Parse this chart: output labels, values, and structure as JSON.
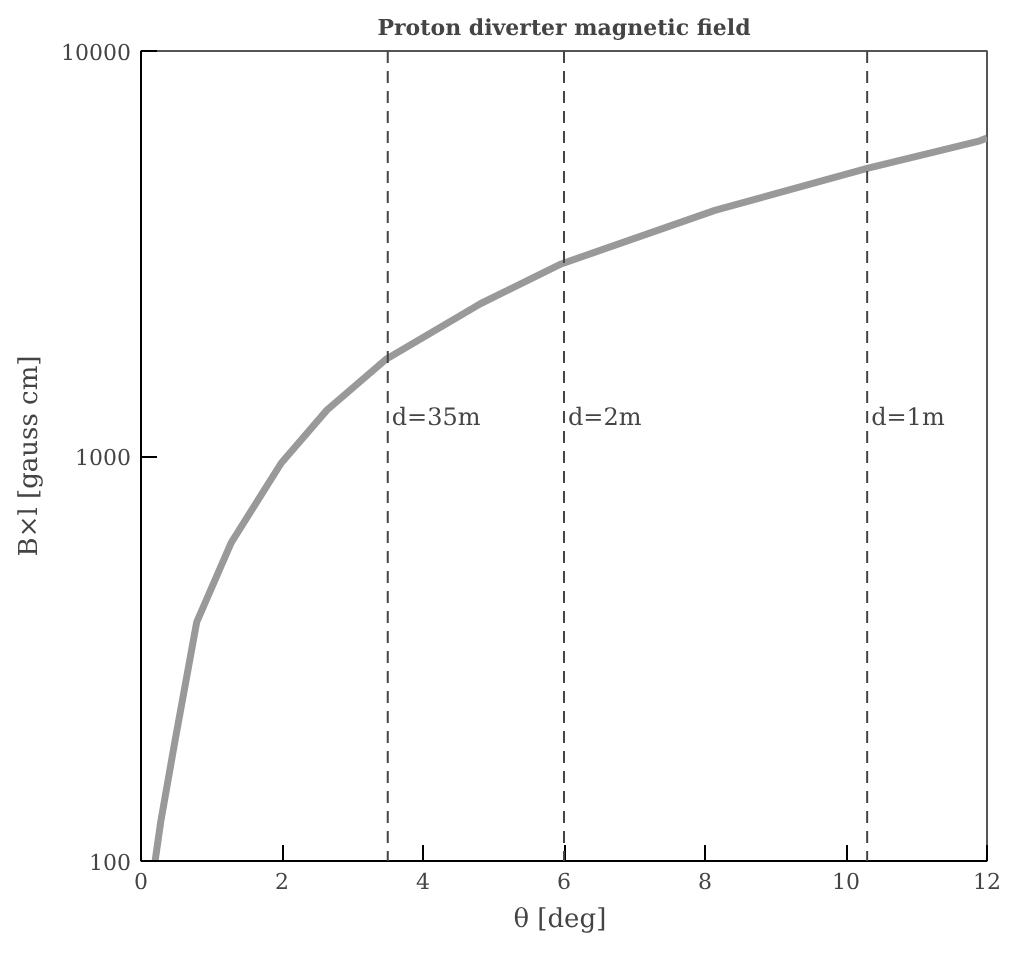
{
  "chart_data": {
    "type": "line",
    "title": "Proton diverter magnetic field",
    "xlabel": "θ  [deg]",
    "ylabel": "B×l [gauss cm]",
    "x": [
      0.2,
      0.28,
      0.48,
      0.79,
      1.28,
      1.99,
      2.64,
      3.47,
      4.82,
      5.96,
      8.14,
      10.3,
      11.9,
      12
    ],
    "series": [
      {
        "color": "#999999",
        "values": [
          100,
          125,
          197,
          389,
          611,
          961,
          1300,
          1730,
          2380,
          2980,
          4040,
          5130,
          6000,
          6100
        ]
      }
    ],
    "xlim": [
      0,
      12
    ],
    "ylim": [
      100,
      10000
    ],
    "xticks": [
      0,
      2,
      4,
      6,
      8,
      10,
      12
    ],
    "yticks": [
      100,
      1000,
      10000
    ],
    "log": "y",
    "grid": false,
    "marker": "none",
    "line_style": "solid",
    "annotations": [
      {
        "text": "d=35m",
        "x": 3.5,
        "y": 1250
      },
      {
        "text": "d=2m",
        "x": 6,
        "y": 1250
      },
      {
        "text": "d=1m",
        "x": 10.3,
        "y": 1250
      }
    ],
    "ref_lines": [
      {
        "axis": "x",
        "value": 3.5,
        "line_style": "dashed",
        "color": "#444444"
      },
      {
        "axis": "x",
        "value": 6,
        "line_style": "dashed",
        "color": "#444444"
      },
      {
        "axis": "x",
        "value": 10.3,
        "line_style": "dashed",
        "color": "#444444"
      }
    ]
  }
}
